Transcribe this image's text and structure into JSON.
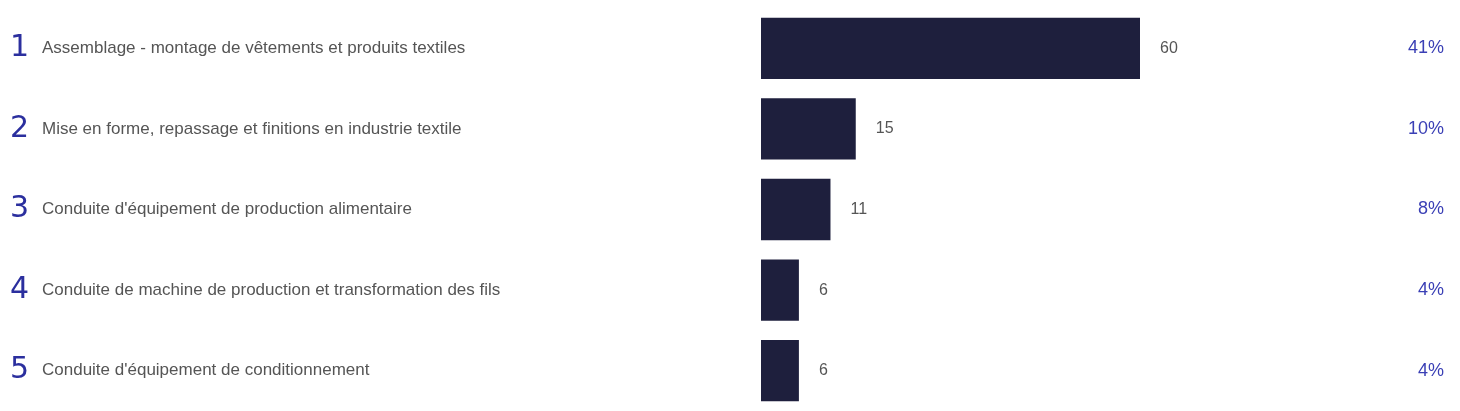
{
  "chart_data": {
    "type": "bar",
    "orientation": "horizontal",
    "categories": [
      "1 Assemblage - montage de vêtements et produits textiles",
      "2 Mise en forme, repassage et finitions en industrie textile",
      "3 Conduite d'équipement de production alimentaire",
      "4 Conduite de machine de production et transformation des fils",
      "5 Conduite d'équipement de conditionnement"
    ],
    "values": [
      60,
      15,
      11,
      6,
      6
    ],
    "color": "#1e1f3d",
    "data_labels": true,
    "annotations": [
      "41%",
      "10%",
      "8%",
      "4%",
      "4%"
    ]
  }
}
